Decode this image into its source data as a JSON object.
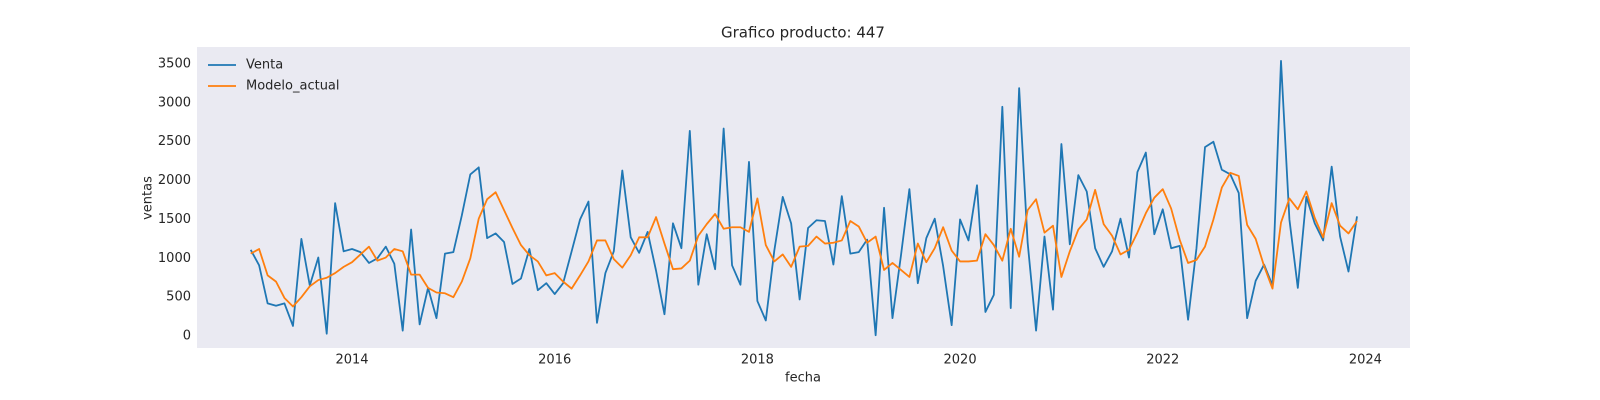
{
  "chart_data": {
    "type": "line",
    "title": "Grafico producto: 447",
    "xlabel": "fecha",
    "ylabel": "ventas",
    "x": [
      2013.0,
      2013.083,
      2013.167,
      2013.25,
      2013.333,
      2013.417,
      2013.5,
      2013.583,
      2013.667,
      2013.75,
      2013.833,
      2013.917,
      2014.0,
      2014.083,
      2014.167,
      2014.25,
      2014.333,
      2014.417,
      2014.5,
      2014.583,
      2014.667,
      2014.75,
      2014.833,
      2014.917,
      2015.0,
      2015.083,
      2015.167,
      2015.25,
      2015.333,
      2015.417,
      2015.5,
      2015.583,
      2015.667,
      2015.75,
      2015.833,
      2015.917,
      2016.0,
      2016.083,
      2016.167,
      2016.25,
      2016.333,
      2016.417,
      2016.5,
      2016.583,
      2016.667,
      2016.75,
      2016.833,
      2016.917,
      2017.0,
      2017.083,
      2017.167,
      2017.25,
      2017.333,
      2017.417,
      2017.5,
      2017.583,
      2017.667,
      2017.75,
      2017.833,
      2017.917,
      2018.0,
      2018.083,
      2018.167,
      2018.25,
      2018.333,
      2018.417,
      2018.5,
      2018.583,
      2018.667,
      2018.75,
      2018.833,
      2018.917,
      2019.0,
      2019.083,
      2019.167,
      2019.25,
      2019.333,
      2019.417,
      2019.5,
      2019.583,
      2019.667,
      2019.75,
      2019.833,
      2019.917,
      2020.0,
      2020.083,
      2020.167,
      2020.25,
      2020.333,
      2020.417,
      2020.5,
      2020.583,
      2020.667,
      2020.75,
      2020.833,
      2020.917,
      2021.0,
      2021.083,
      2021.167,
      2021.25,
      2021.333,
      2021.417,
      2021.5,
      2021.583,
      2021.667,
      2021.75,
      2021.833,
      2021.917,
      2022.0,
      2022.083,
      2022.167,
      2022.25,
      2022.333,
      2022.417,
      2022.5,
      2022.583,
      2022.667,
      2022.75,
      2022.833,
      2022.917,
      2023.0,
      2023.083,
      2023.167,
      2023.25,
      2023.333,
      2023.417,
      2023.5,
      2023.583,
      2023.667,
      2023.75,
      2023.833,
      2023.917
    ],
    "series": [
      {
        "name": "Venta",
        "color": "#1f77b4",
        "values": [
          1110,
          910,
          420,
          390,
          420,
          130,
          1250,
          650,
          1010,
          30,
          1710,
          1090,
          1120,
          1080,
          940,
          1000,
          1150,
          930,
          70,
          1370,
          150,
          620,
          230,
          1060,
          1080,
          1550,
          2080,
          2170,
          1260,
          1320,
          1210,
          670,
          740,
          1120,
          590,
          680,
          540,
          680,
          1090,
          1500,
          1730,
          170,
          810,
          1090,
          2130,
          1270,
          1070,
          1340,
          840,
          280,
          1450,
          1130,
          2640,
          660,
          1310,
          860,
          2670,
          910,
          660,
          2240,
          450,
          200,
          1100,
          1790,
          1450,
          470,
          1390,
          1490,
          1480,
          920,
          1800,
          1060,
          1080,
          1240,
          10,
          1650,
          230,
          1040,
          1890,
          680,
          1260,
          1510,
          900,
          140,
          1500,
          1230,
          1940,
          310,
          530,
          2950,
          360,
          3190,
          1200,
          70,
          1280,
          340,
          2470,
          1180,
          2070,
          1860,
          1130,
          890,
          1090,
          1510,
          1010,
          2110,
          2360,
          1310,
          1630,
          1130,
          1160,
          210,
          1130,
          2430,
          2500,
          2140,
          2080,
          1840,
          230,
          710,
          920,
          650,
          3540,
          1500,
          620,
          1790,
          1450,
          1230,
          2180,
          1280,
          830,
          1540
        ]
      },
      {
        "name": "Modelo_actual",
        "color": "#ff7f0e",
        "values": [
          1060,
          1120,
          780,
          700,
          490,
          380,
          500,
          640,
          720,
          750,
          810,
          890,
          950,
          1050,
          1150,
          970,
          1010,
          1120,
          1090,
          790,
          790,
          620,
          560,
          550,
          500,
          700,
          1000,
          1510,
          1760,
          1850,
          1620,
          1390,
          1170,
          1040,
          960,
          780,
          810,
          700,
          610,
          780,
          960,
          1230,
          1230,
          990,
          880,
          1040,
          1270,
          1270,
          1530,
          1190,
          860,
          870,
          970,
          1290,
          1440,
          1570,
          1380,
          1400,
          1400,
          1340,
          1770,
          1170,
          960,
          1050,
          890,
          1150,
          1160,
          1280,
          1190,
          1200,
          1230,
          1480,
          1410,
          1200,
          1280,
          850,
          940,
          850,
          760,
          1190,
          950,
          1130,
          1400,
          1100,
          960,
          960,
          970,
          1310,
          1170,
          970,
          1380,
          1020,
          1620,
          1760,
          1330,
          1420,
          760,
          1090,
          1370,
          1500,
          1880,
          1440,
          1290,
          1050,
          1110,
          1330,
          1580,
          1780,
          1890,
          1640,
          1240,
          940,
          980,
          1150,
          1500,
          1910,
          2100,
          2060,
          1430,
          1250,
          900,
          610,
          1460,
          1770,
          1630,
          1860,
          1520,
          1270,
          1710,
          1420,
          1320,
          1480
        ]
      }
    ],
    "xlim": [
      2012.47,
      2024.44
    ],
    "xticks": [
      2014,
      2016,
      2018,
      2020,
      2022,
      2024
    ],
    "ylim": [
      -154,
      3719
    ],
    "yticks": [
      0,
      500,
      1000,
      1500,
      2000,
      2500,
      3000,
      3500
    ],
    "grid": false,
    "legend": "upper left",
    "background": "#eaeaf2"
  }
}
